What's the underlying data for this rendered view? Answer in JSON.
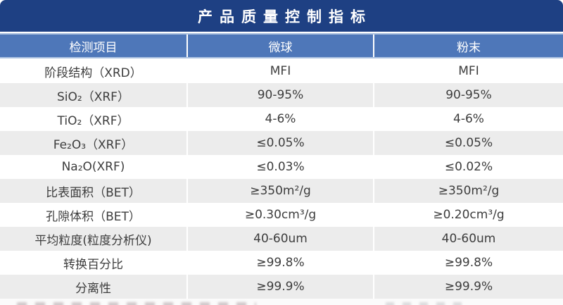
{
  "title": "产品质量控制指标",
  "colors": {
    "title_bar_navy": "#1e4083",
    "header_blue": "#4e77b9",
    "header_border_light_blue": "#aec3e1",
    "row_alt_gray": "#ececec",
    "body_text": "#3d3d3d",
    "header_text": "#ffffff"
  },
  "table": {
    "columns": [
      "检测项目",
      "微球",
      "粉末"
    ],
    "rows": [
      {
        "label": "阶段结构（XRD）",
        "microsphere": "MFI",
        "powder": "MFI"
      },
      {
        "label": "SiO₂（XRF）",
        "microsphere": "90-95%",
        "powder": "90-95%"
      },
      {
        "label": "TiO₂（XRF）",
        "microsphere": "4-6%",
        "powder": "4-6%"
      },
      {
        "label": "Fe₂O₃（XRF）",
        "microsphere": "≤0.05%",
        "powder": "≤0.05%"
      },
      {
        "label": "Na₂O(XRF)",
        "microsphere": "≤0.03%",
        "powder": "≤0.02%"
      },
      {
        "label": "比表面积（BET）",
        "microsphere": "≥350m²/g",
        "powder": "≥350m²/g"
      },
      {
        "label": "孔隙体积（BET）",
        "microsphere": "≥0.30cm³/g",
        "powder": "≥0.20cm³/g"
      },
      {
        "label": "平均粒度(粒度分析仪)",
        "microsphere": "40-60um",
        "powder": "40-60um"
      },
      {
        "label": "转换百分比",
        "microsphere": "≥99.8%",
        "powder": "≥99.8%"
      },
      {
        "label": "分离性",
        "microsphere": "≥99.9%",
        "powder": "≥99.9%"
      }
    ]
  }
}
